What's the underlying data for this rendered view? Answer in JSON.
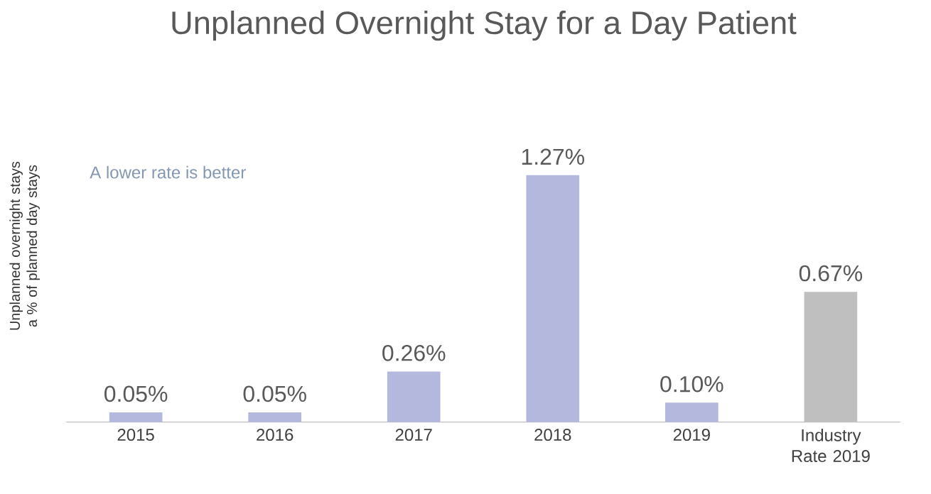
{
  "chart_data": {
    "type": "bar",
    "title": "Unplanned Overnight Stay for a Day Patient",
    "ylabel": "Unplanned overnight stays a % of planned day stays",
    "categories": [
      "2015",
      "2016",
      "2017",
      "2018",
      "2019",
      "Industry Rate 2019"
    ],
    "values": [
      0.05,
      0.05,
      0.26,
      1.27,
      0.1,
      0.67
    ],
    "value_labels": [
      "0.05%",
      "0.05%",
      "0.26%",
      "1.27%",
      "0.10%",
      "0.67%"
    ],
    "colors": [
      "#b4b8dc",
      "#b4b8dc",
      "#b4b8dc",
      "#b4b8dc",
      "#b4b8dc",
      "#bfbfbf"
    ],
    "annotations": [
      "A lower rate is better"
    ]
  }
}
